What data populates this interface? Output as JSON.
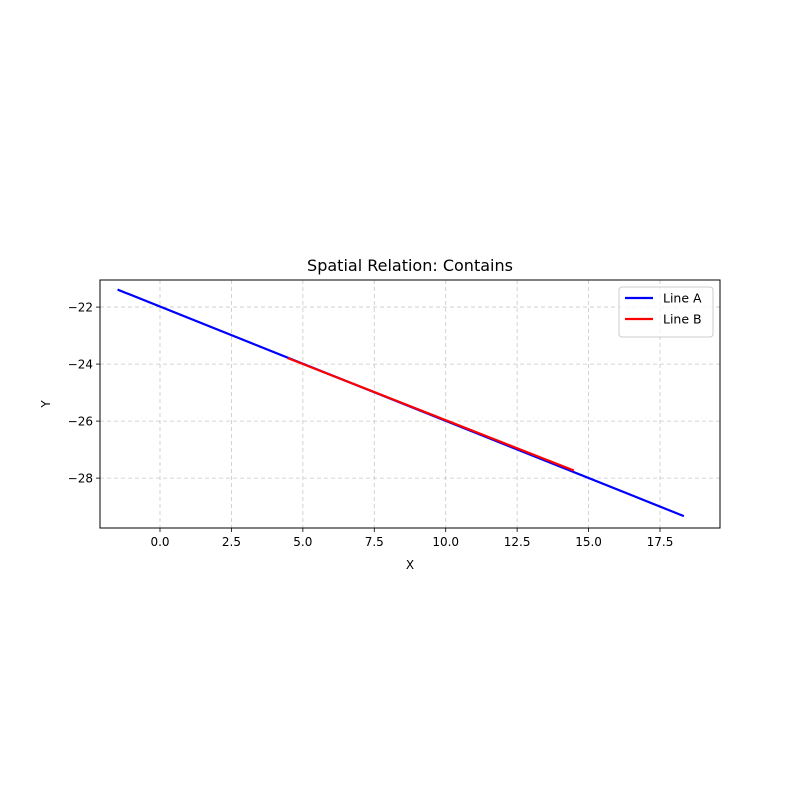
{
  "chart_data": {
    "type": "line",
    "title": "Spatial Relation: Contains",
    "xlabel": "X",
    "ylabel": "Y",
    "xlim": [
      -2.1,
      19.6
    ],
    "ylim": [
      -29.75,
      -21.05
    ],
    "xticks": [
      0.0,
      2.5,
      5.0,
      7.5,
      10.0,
      12.5,
      15.0,
      17.5
    ],
    "xtick_labels": [
      "0.0",
      "2.5",
      "5.0",
      "7.5",
      "10.0",
      "12.5",
      "15.0",
      "17.5"
    ],
    "yticks": [
      -22,
      -24,
      -26,
      -28
    ],
    "ytick_labels": [
      "−22",
      "−24",
      "−26",
      "−28"
    ],
    "grid": true,
    "legend_position": "top-right",
    "series": [
      {
        "name": "Line A",
        "color": "#0000ff",
        "points": [
          [
            -1.45,
            -21.4
          ],
          [
            18.3,
            -29.32
          ]
        ]
      },
      {
        "name": "Line B",
        "color": "#ff0000",
        "points": [
          [
            4.5,
            -23.8
          ],
          [
            14.45,
            -27.72
          ]
        ]
      }
    ]
  }
}
